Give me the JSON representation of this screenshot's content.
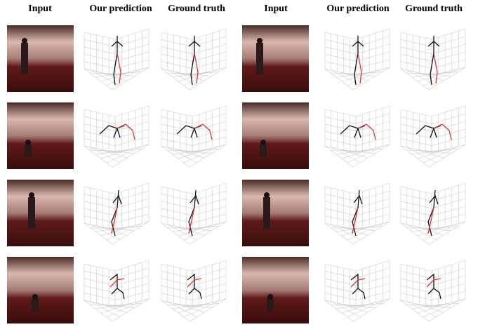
{
  "header": {
    "columns": [
      "Input",
      "Our prediction",
      "Ground truth",
      "Input",
      "Our prediction",
      "Ground truth"
    ]
  }
}
